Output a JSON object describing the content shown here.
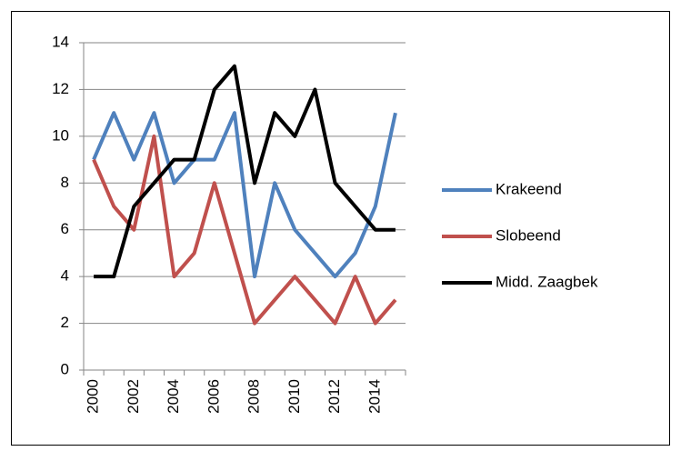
{
  "chart_data": {
    "type": "line",
    "categories": [
      "2000",
      null,
      "2002",
      null,
      "2004",
      null,
      "2006",
      null,
      "2008",
      null,
      "2010",
      null,
      "2012",
      null,
      "2014",
      null
    ],
    "series": [
      {
        "name": "Krakeend",
        "color": "#4f81bd",
        "values": [
          9,
          11,
          9,
          11,
          8,
          9,
          9,
          11,
          4,
          8,
          6,
          5,
          4,
          5,
          7,
          11
        ]
      },
      {
        "name": "Slobeend",
        "color": "#c0504d",
        "values": [
          9,
          7,
          6,
          10,
          4,
          5,
          8,
          5,
          2,
          3,
          4,
          3,
          2,
          4,
          2,
          3
        ]
      },
      {
        "name": "Midd. Zaagbek",
        "color": "#000000",
        "values": [
          4,
          4,
          7,
          8,
          9,
          9,
          12,
          13,
          8,
          11,
          10,
          12,
          8,
          7,
          6,
          6
        ]
      }
    ],
    "ylim": [
      0,
      14
    ],
    "yticks": [
      0,
      2,
      4,
      6,
      8,
      10,
      12,
      14
    ],
    "grid": true,
    "legend": "right"
  }
}
